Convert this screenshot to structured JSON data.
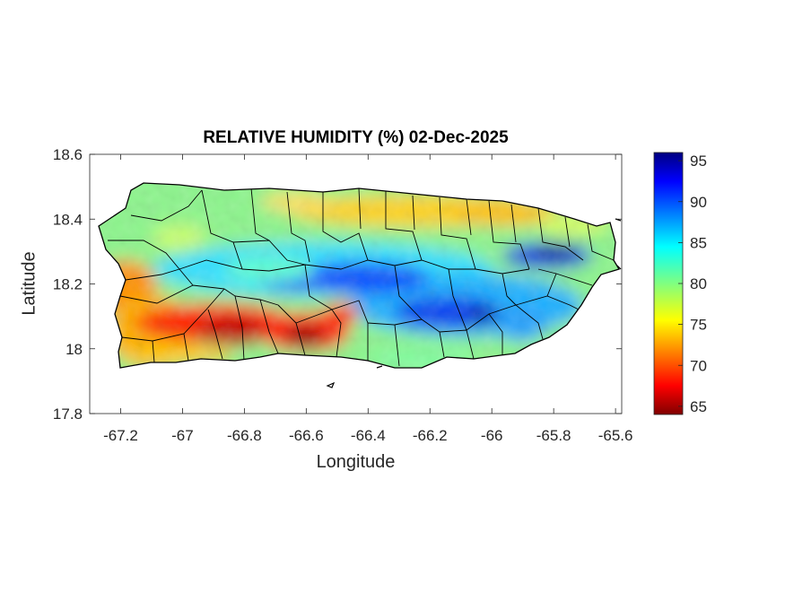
{
  "title": "RELATIVE HUMIDITY (%) 02-Dec-2025",
  "xlabel": "Longitude",
  "ylabel": "Latitude",
  "map": {
    "region": "Puerto Rico",
    "variable": "relative humidity",
    "xlim": [
      -67.3,
      -65.58
    ],
    "ylim": [
      17.8,
      18.6
    ],
    "xticks": [
      -67.2,
      -67,
      -66.8,
      -66.6,
      -66.4,
      -66.2,
      -66,
      -65.8,
      -65.6
    ],
    "xtick_labels": [
      "-67.2",
      "-67",
      "-66.8",
      "-66.6",
      "-66.4",
      "-66.2",
      "-66",
      "-65.8",
      "-65.6"
    ],
    "yticks": [
      17.8,
      18,
      18.2,
      18.4,
      18.6
    ],
    "ytick_labels": [
      "17.8",
      "18",
      "18.2",
      "18.4",
      "18.6"
    ],
    "colormap": "jet",
    "colors": {
      "low": "#800000",
      "mid_low": "#ff0000",
      "mid": "#ffff00",
      "mid_green": "#80ff80",
      "mid_high": "#00ffff",
      "high": "#0000ff",
      "max": "#000080"
    }
  },
  "colorbar": {
    "min": 64,
    "max": 96,
    "ticks": [
      65,
      70,
      75,
      80,
      85,
      90,
      95
    ],
    "tick_labels": [
      "65",
      "70",
      "75",
      "80",
      "85",
      "90",
      "95"
    ]
  }
}
